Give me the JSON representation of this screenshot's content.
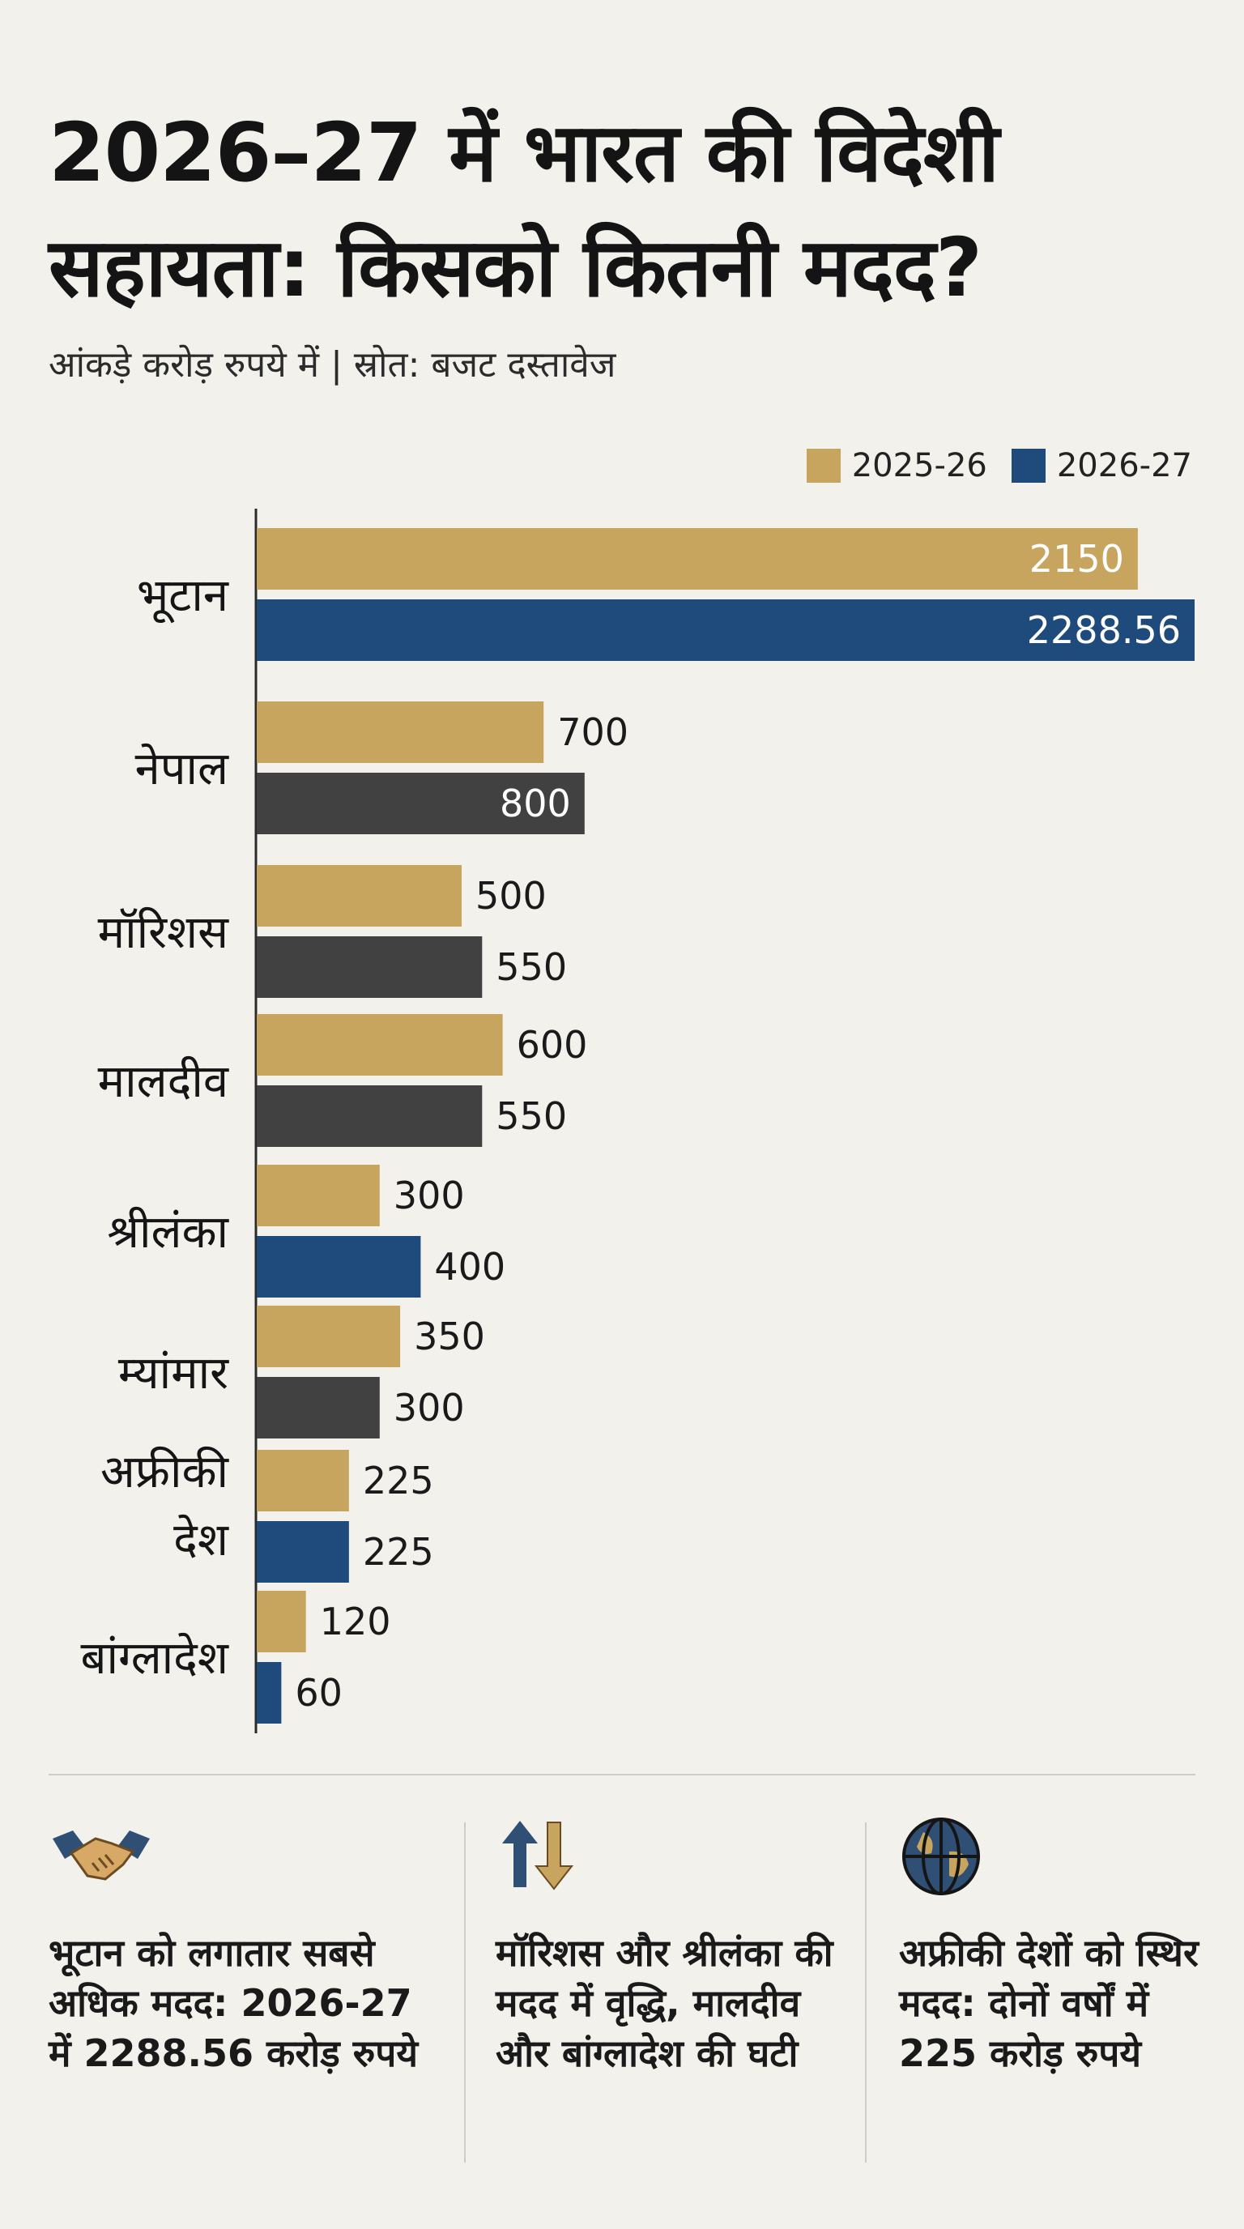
{
  "title": "2026–27 में भारत की विदेशी सहायता: किसको कितनी मदद?",
  "subtitle": "आंकड़े करोड़ रुपये में | स्रोत: बजट दस्तावेज",
  "legend": [
    {
      "label": "2025-26",
      "color": "#c7a55f"
    },
    {
      "label": "2026-27",
      "color": "#1f4b7c"
    }
  ],
  "colors": {
    "gold": "#c7a55f",
    "blue": "#1f4b7c",
    "gray": "#414141",
    "axis": "#2a2a2a"
  },
  "chart_data": {
    "type": "bar",
    "orientation": "horizontal",
    "title": "2026–27 में भारत की विदेशी सहायता: किसको कितनी मदद?",
    "unit": "करोड़ रुपये",
    "categories": [
      "भूटान",
      "नेपाल",
      "मॉरिशस",
      "मालदीव",
      "श्रीलंका",
      "म्यांमार",
      "अफ्रीकी देश",
      "बांग्लादेश"
    ],
    "series": [
      {
        "name": "2025-26",
        "values": [
          2150,
          700,
          500,
          600,
          300,
          350,
          225,
          120
        ]
      },
      {
        "name": "2026-27",
        "values": [
          2288.56,
          800,
          550,
          550,
          400,
          300,
          225,
          60
        ]
      }
    ],
    "value_labels": {
      "2025-26": [
        "2150",
        "700",
        "500",
        "600",
        "300",
        "350",
        "225",
        "120"
      ],
      "2026-27": [
        "2288.56",
        "800",
        "550",
        "550",
        "400",
        "300",
        "225",
        "60"
      ]
    },
    "series2_bar_colors": [
      "blue",
      "gray",
      "gray",
      "gray",
      "blue",
      "gray",
      "blue",
      "blue"
    ],
    "xlim": [
      0,
      2288.56
    ]
  },
  "highlights": [
    {
      "icon": "handshake-icon",
      "text": "भूटान को लगातार सबसे अधिक मदद: 2026-27 में 2288.56 करोड़ रुपये"
    },
    {
      "icon": "up-down-arrows-icon",
      "text": "मॉरिशस और श्रीलंका की मदद में वृद्धि, मालदीव और बांग्लादेश की घटी"
    },
    {
      "icon": "globe-icon",
      "text": "अफ्रीकी देशों को स्थिर मदद: दोनों वर्षों में 225 करोड़ रुपये"
    }
  ]
}
